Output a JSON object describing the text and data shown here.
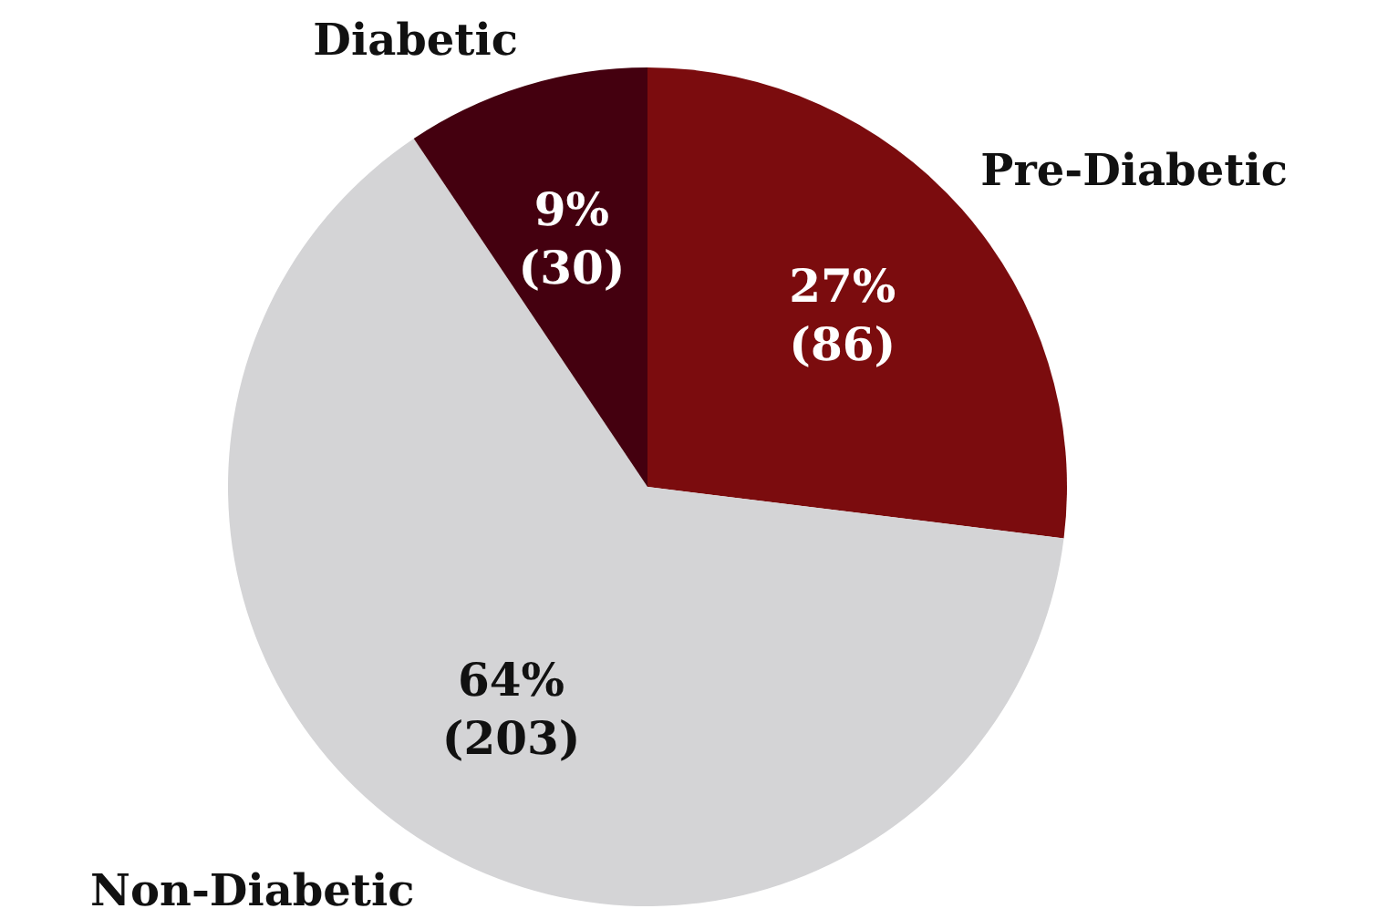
{
  "chart_data": {
    "type": "pie",
    "categories": [
      "Pre-Diabetic",
      "Non-Diabetic",
      "Diabetic"
    ],
    "values": [
      86,
      203,
      30
    ],
    "colors": [
      "#7b0c0e",
      "#d4d4d6",
      "#44000f"
    ],
    "value_labels": [
      "27%\n(86)",
      "64%\n(203)",
      "9%\n(30)"
    ]
  }
}
